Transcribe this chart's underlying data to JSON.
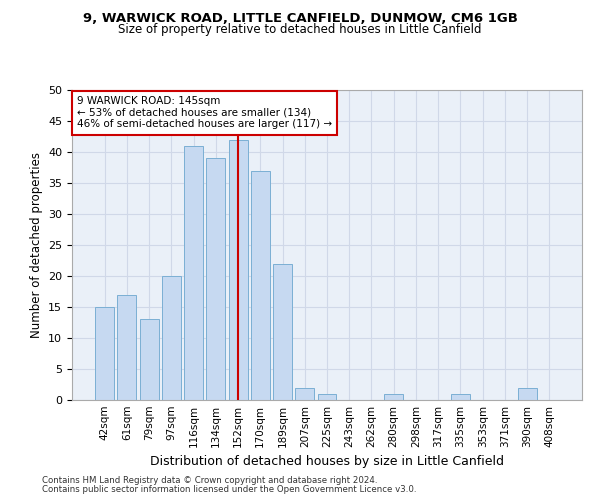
{
  "title1": "9, WARWICK ROAD, LITTLE CANFIELD, DUNMOW, CM6 1GB",
  "title2": "Size of property relative to detached houses in Little Canfield",
  "xlabel": "Distribution of detached houses by size in Little Canfield",
  "ylabel": "Number of detached properties",
  "categories": [
    "42sqm",
    "61sqm",
    "79sqm",
    "97sqm",
    "116sqm",
    "134sqm",
    "152sqm",
    "170sqm",
    "189sqm",
    "207sqm",
    "225sqm",
    "243sqm",
    "262sqm",
    "280sqm",
    "298sqm",
    "317sqm",
    "335sqm",
    "353sqm",
    "371sqm",
    "390sqm",
    "408sqm"
  ],
  "values": [
    15,
    17,
    13,
    20,
    41,
    39,
    42,
    37,
    22,
    2,
    1,
    0,
    0,
    1,
    0,
    0,
    1,
    0,
    0,
    2,
    0
  ],
  "bar_color": "#c6d9f1",
  "bar_edge_color": "#7bafd4",
  "grid_color": "#d0d8e8",
  "background_color": "#eaf0f8",
  "vline_x": 6.0,
  "vline_color": "#cc0000",
  "ylim": [
    0,
    50
  ],
  "yticks": [
    0,
    5,
    10,
    15,
    20,
    25,
    30,
    35,
    40,
    45,
    50
  ],
  "annotation_text": "9 WARWICK ROAD: 145sqm\n← 53% of detached houses are smaller (134)\n46% of semi-detached houses are larger (117) →",
  "annotation_box_color": "#ffffff",
  "annotation_edge_color": "#cc0000",
  "footnote1": "Contains HM Land Registry data © Crown copyright and database right 2024.",
  "footnote2": "Contains public sector information licensed under the Open Government Licence v3.0."
}
